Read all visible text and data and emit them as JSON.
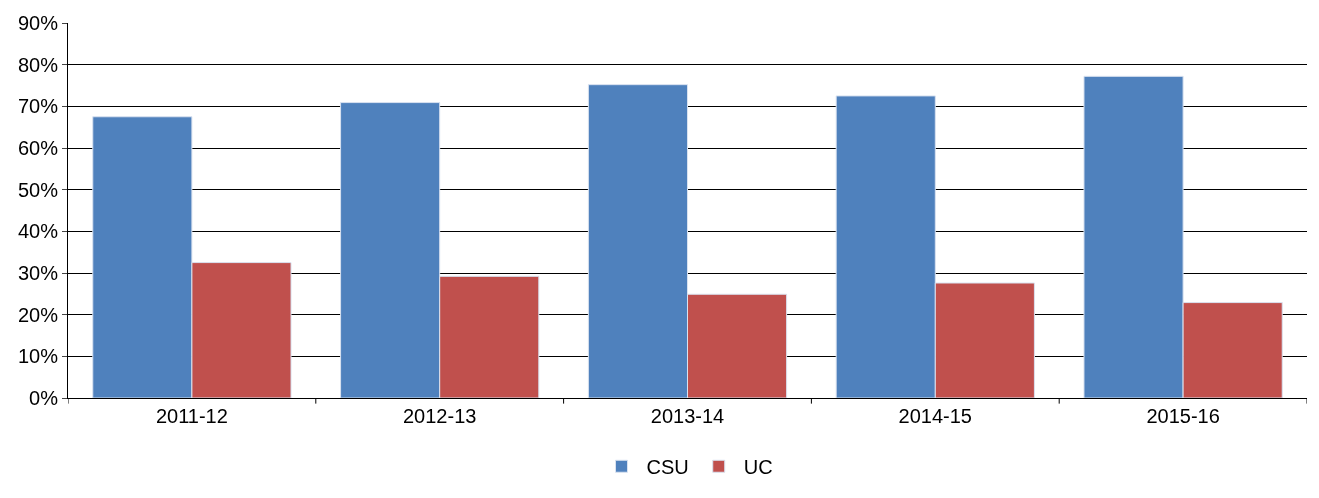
{
  "chart_data": {
    "type": "bar",
    "categories": [
      "2011-12",
      "2012-13",
      "2013-14",
      "2014-15",
      "2015-16"
    ],
    "series": [
      {
        "name": "CSU",
        "color": "#4f81bd",
        "values": [
          67.5,
          70.9,
          75.2,
          72.5,
          77.2
        ]
      },
      {
        "name": "UC",
        "color": "#c0504d",
        "values": [
          32.5,
          29.2,
          24.9,
          27.6,
          22.9
        ]
      }
    ],
    "ylim": [
      0,
      90
    ],
    "yticks": [
      {
        "value": 0,
        "label": "0%"
      },
      {
        "value": 10,
        "label": "10%"
      },
      {
        "value": 20,
        "label": "20%"
      },
      {
        "value": 30,
        "label": "30%"
      },
      {
        "value": 40,
        "label": "40%"
      },
      {
        "value": 50,
        "label": "50%"
      },
      {
        "value": 60,
        "label": "60%"
      },
      {
        "value": 70,
        "label": "70%"
      },
      {
        "value": 80,
        "label": "80%"
      },
      {
        "value": 90,
        "label": "90%"
      }
    ],
    "grid": "y",
    "legend": "bottom"
  }
}
